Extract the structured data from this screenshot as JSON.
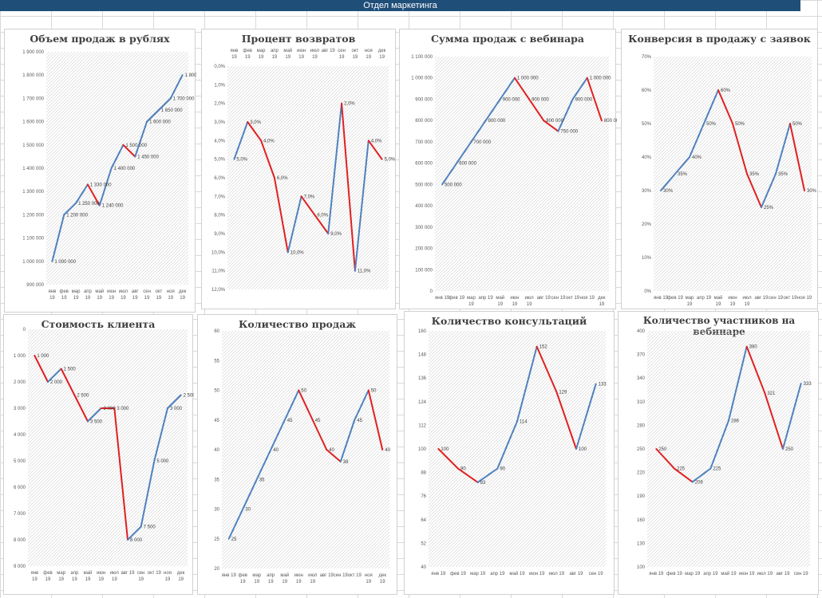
{
  "header": {
    "title": "Отдел маркетинга"
  },
  "colors": {
    "banner": "#1f4e79",
    "line_up": "#4f81bd",
    "line_down": "#e02020",
    "hatch": "#d0d0d0"
  },
  "charts": [
    {
      "id": "sales_rub",
      "title": "Объем продаж в рублях",
      "categories": [
        [
          "янв",
          "19"
        ],
        [
          "фев",
          "19"
        ],
        [
          "мар",
          "19"
        ],
        [
          "апр",
          "19"
        ],
        [
          "май",
          "19"
        ],
        [
          "июн",
          "19"
        ],
        [
          "июл",
          "19"
        ],
        [
          "авг",
          "19"
        ],
        [
          "сен",
          "19"
        ],
        [
          "окт",
          "19"
        ],
        [
          "ноя",
          "19"
        ],
        [
          "дек",
          "19"
        ]
      ],
      "values": [
        1000000,
        1200000,
        1250000,
        1330000,
        1240000,
        1400000,
        1500000,
        1450000,
        1600000,
        1650000,
        1700000,
        1800000
      ],
      "value_labels": [
        "1 000 000",
        "1 200 000",
        "1 250 000",
        "1 330 000",
        "1 240 000",
        "1 400 000",
        "1 500 000",
        "1 450 000",
        "1 600 000",
        "1 650 000",
        "1 700 000",
        "1 800 000"
      ],
      "ylim": [
        900000,
        1900000
      ],
      "yticks": [
        "900 000",
        "1 000 000",
        "1 100 000",
        "1 200 000",
        "1 300 000",
        "1 400 000",
        "1 500 000",
        "1 600 000",
        "1 700 000",
        "1 800 000",
        "1 900 000"
      ],
      "reversed": false
    },
    {
      "id": "returns_pct",
      "title": "Процент возвратов",
      "categories": [
        [
          "янв",
          "19"
        ],
        [
          "фев",
          "19"
        ],
        [
          "мар",
          "19"
        ],
        [
          "апр",
          "19"
        ],
        [
          "май",
          "19"
        ],
        [
          "июн",
          "19"
        ],
        [
          "июл",
          "19"
        ],
        [
          "авг 19",
          ""
        ],
        [
          "сен",
          "19"
        ],
        [
          "окт",
          "19"
        ],
        [
          "ноя",
          "19"
        ],
        [
          "дек",
          "19"
        ]
      ],
      "values": [
        5,
        3,
        4,
        6,
        10,
        7,
        8,
        9,
        2,
        11,
        4,
        5
      ],
      "value_labels": [
        "5,0%",
        "3,0%",
        "4,0%",
        "6,0%",
        "10,0%",
        "7,0%",
        "8,0%",
        "9,0%",
        "2,0%",
        "11,0%",
        "4,0%",
        "5,0%"
      ],
      "ylim": [
        0,
        12
      ],
      "yticks": [
        "0,0%",
        "1,0%",
        "2,0%",
        "3,0%",
        "4,0%",
        "5,0%",
        "6,0%",
        "7,0%",
        "8,0%",
        "9,0%",
        "10,0%",
        "11,0%",
        "12,0%"
      ],
      "reversed": true,
      "axis_top": true
    },
    {
      "id": "webinar_sum",
      "title": "Сумма продаж с вебинара",
      "categories": [
        [
          "янв 19",
          ""
        ],
        [
          "фев 19",
          ""
        ],
        [
          "мар",
          "19"
        ],
        [
          "апр 19",
          ""
        ],
        [
          "май",
          "19"
        ],
        [
          "июн",
          "19"
        ],
        [
          "июл",
          "19"
        ],
        [
          "авг 19",
          ""
        ],
        [
          "сен 19",
          ""
        ],
        [
          "окт 19",
          ""
        ],
        [
          "ноя 19",
          ""
        ],
        [
          "дек",
          "19"
        ]
      ],
      "values": [
        500000,
        600000,
        700000,
        800000,
        900000,
        1000000,
        900000,
        800000,
        750000,
        900000,
        1000000,
        800000
      ],
      "value_labels": [
        "500 000",
        "600 000",
        "700 000",
        "800 000",
        "900 000",
        "1 000 000",
        "900 000",
        "800 000",
        "750 000",
        "900 000",
        "1 000 000",
        "800 000"
      ],
      "ylim": [
        0,
        1100000
      ],
      "yticks": [
        "0",
        "100 000",
        "200 000",
        "300 000",
        "400 000",
        "500 000",
        "600 000",
        "700 000",
        "800 000",
        "900 000",
        "1 000 000",
        "1 100 000"
      ],
      "reversed": false
    },
    {
      "id": "conversion",
      "title": "Конверсия в продажу с заявок",
      "categories": [
        [
          "янв 19",
          ""
        ],
        [
          "фев 19",
          ""
        ],
        [
          "мар",
          "19"
        ],
        [
          "апр 19",
          ""
        ],
        [
          "май",
          "19"
        ],
        [
          "июн",
          "19"
        ],
        [
          "июл",
          "19"
        ],
        [
          "авг 19",
          ""
        ],
        [
          "сен 19",
          ""
        ],
        [
          "окт 19",
          ""
        ],
        [
          "ноя 19",
          ""
        ]
      ],
      "values": [
        30,
        35,
        40,
        50,
        60,
        50,
        35,
        25,
        35,
        50,
        30
      ],
      "value_labels": [
        "30%",
        "35%",
        "40%",
        "50%",
        "60%",
        "50%",
        "35%",
        "25%",
        "35%",
        "50%",
        "30%"
      ],
      "ylim": [
        0,
        70
      ],
      "yticks": [
        "0%",
        "10%",
        "20%",
        "30%",
        "40%",
        "50%",
        "60%",
        "70%"
      ],
      "reversed": false
    },
    {
      "id": "client_cost",
      "title": "Стоимость клиента",
      "categories": [
        [
          "янв",
          "19"
        ],
        [
          "фев",
          "19"
        ],
        [
          "мар",
          "19"
        ],
        [
          "апр",
          "19"
        ],
        [
          "май",
          "19"
        ],
        [
          "июн",
          "19"
        ],
        [
          "июл",
          "19"
        ],
        [
          "авг 19",
          ""
        ],
        [
          "сен",
          "19"
        ],
        [
          "окт 19",
          ""
        ],
        [
          "ноя",
          "19"
        ],
        [
          "дек",
          "19"
        ]
      ],
      "values": [
        1000,
        2000,
        1500,
        2500,
        3500,
        3000,
        3000,
        8000,
        7500,
        5000,
        3000,
        2500
      ],
      "value_labels": [
        "1 000",
        "2 000",
        "1 500",
        "2 500",
        "3 500",
        "3 000",
        "3 000",
        "8 000",
        "7 500",
        "5 000",
        "3 000",
        "2 500"
      ],
      "ylim": [
        0,
        9000
      ],
      "yticks": [
        "0",
        "1 000",
        "2 000",
        "3 000",
        "4 000",
        "5 000",
        "6 000",
        "7 000",
        "8 000",
        "9 000"
      ],
      "reversed": true
    },
    {
      "id": "sales_count",
      "title": "Количество продаж",
      "categories": [
        [
          "янв 19",
          ""
        ],
        [
          "фев",
          "19"
        ],
        [
          "мар",
          "19"
        ],
        [
          "апр",
          "19"
        ],
        [
          "май",
          "19"
        ],
        [
          "июн",
          "19"
        ],
        [
          "июл",
          "19"
        ],
        [
          "авг 19",
          ""
        ],
        [
          "сен 19",
          ""
        ],
        [
          "окт 19",
          ""
        ],
        [
          "ноя",
          "19"
        ],
        [
          "дек",
          "19"
        ]
      ],
      "values": [
        25,
        30,
        35,
        40,
        45,
        50,
        45,
        40,
        38,
        45,
        50,
        40
      ],
      "value_labels": [
        "25",
        "30",
        "35",
        "40",
        "45",
        "50",
        "45",
        "40",
        "38",
        "45",
        "50",
        "40"
      ],
      "ylim": [
        20,
        60
      ],
      "yticks": [
        "20",
        "25",
        "30",
        "35",
        "40",
        "45",
        "50",
        "55",
        "60"
      ],
      "reversed": false
    },
    {
      "id": "consultations",
      "title": "Количество консультаций",
      "categories": [
        [
          "янв 19",
          ""
        ],
        [
          "фев 19",
          ""
        ],
        [
          "мар 19",
          ""
        ],
        [
          "апр 19",
          ""
        ],
        [
          "май 19",
          ""
        ],
        [
          "июн 19",
          ""
        ],
        [
          "июл 19",
          ""
        ],
        [
          "авг 19",
          ""
        ],
        [
          "сен 19",
          ""
        ]
      ],
      "values": [
        100,
        90,
        83,
        90,
        114,
        152,
        129,
        100,
        133
      ],
      "value_labels": [
        "100",
        "90",
        "83",
        "90",
        "114",
        "152",
        "129",
        "100",
        "133"
      ],
      "ylim": [
        40,
        160
      ],
      "yticks": [
        "40",
        "52",
        "64",
        "76",
        "88",
        "100",
        "112",
        "124",
        "136",
        "148",
        "160"
      ],
      "reversed": false
    },
    {
      "id": "webinar_participants",
      "title": "Количество участников на вебинаре",
      "categories": [
        [
          "янв 19",
          ""
        ],
        [
          "фев 19",
          ""
        ],
        [
          "мар 19",
          ""
        ],
        [
          "апр 19",
          ""
        ],
        [
          "май 19",
          ""
        ],
        [
          "июн 19",
          ""
        ],
        [
          "июл 19",
          ""
        ],
        [
          "авг 19",
          ""
        ],
        [
          "сен 19",
          ""
        ]
      ],
      "values": [
        250,
        225,
        208,
        225,
        286,
        380,
        321,
        250,
        333
      ],
      "value_labels": [
        "250",
        "225",
        "208",
        "225",
        "286",
        "380",
        "321",
        "250",
        "333"
      ],
      "ylim": [
        100,
        400
      ],
      "yticks": [
        "100",
        "130",
        "160",
        "190",
        "220",
        "250",
        "280",
        "310",
        "340",
        "370",
        "400"
      ],
      "reversed": false
    }
  ]
}
